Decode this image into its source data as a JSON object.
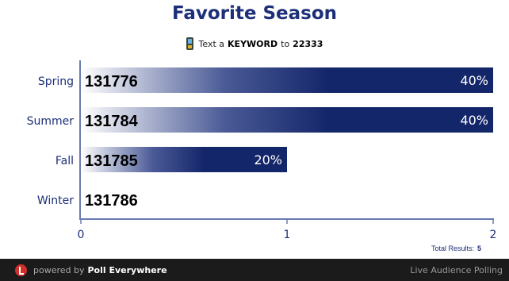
{
  "title": "Favorite Season",
  "instruction": {
    "prefix": "Text a",
    "keyword": "KEYWORD",
    "middle": "to",
    "number": "22333"
  },
  "chart_data": {
    "type": "bar",
    "orientation": "horizontal",
    "categories": [
      "Spring",
      "Summer",
      "Fall",
      "Winter"
    ],
    "values": [
      2,
      2,
      1,
      0
    ],
    "percent_labels": [
      "40%",
      "40%",
      "20%",
      ""
    ],
    "keywords": [
      "131776",
      "131784",
      "131785",
      "131786"
    ],
    "xticks": [
      "0",
      "1",
      "2"
    ],
    "xlim": [
      0,
      2
    ],
    "grid": false,
    "bar_color": "#14266a"
  },
  "total_results": {
    "label": "Total Results:",
    "value": "5"
  },
  "footer": {
    "powered_by": "powered by",
    "brand": "Poll Everywhere",
    "tagline": "Live Audience Polling"
  }
}
